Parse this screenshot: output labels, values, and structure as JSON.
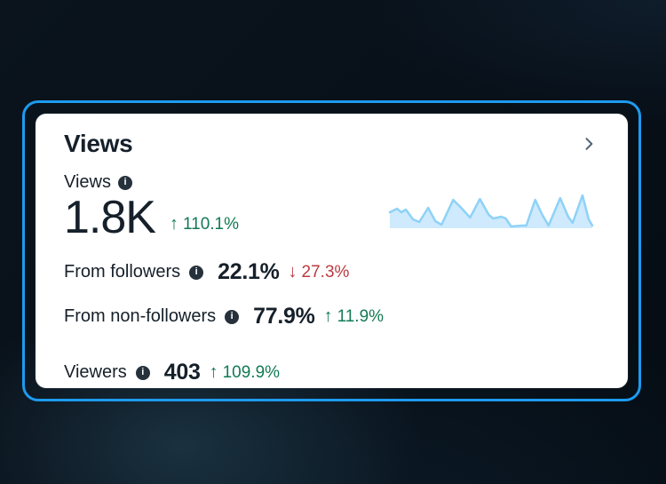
{
  "card": {
    "title": "Views",
    "metric": {
      "label": "Views",
      "value": "1.8K",
      "arrow": "↑",
      "change": "110.1%",
      "direction": "up"
    },
    "breakdown_rows": [
      {
        "label": "From followers",
        "value": "22.1%",
        "arrow": "↓",
        "change": "27.3%",
        "direction": "down"
      },
      {
        "label": "From non-followers",
        "value": "77.9%",
        "arrow": "↑",
        "change": "11.9%",
        "direction": "up"
      }
    ],
    "footer_row": {
      "label": "Viewers",
      "value": "403",
      "arrow": "↑",
      "change": "109.9%",
      "direction": "up"
    }
  },
  "colors": {
    "accent": "#1d9bf0",
    "positive": "#127a54",
    "negative": "#bb3b41",
    "text": "#16202a",
    "muted": "#536471",
    "card_bg": "#ffffff",
    "divider": "#e3e8ec",
    "spark_line": "#8ed2f7",
    "spark_fill": "#cfeafc"
  },
  "chart_data": {
    "type": "area",
    "title": "Views sparkline (relative views over time, unlabeled axes)",
    "grid": false,
    "legend": "none",
    "x_range": [
      0,
      235
    ],
    "y_range": [
      0,
      48
    ],
    "baseline": 48,
    "note": "points are SVG coords (y measured downward from top); relative value = baseline - y",
    "points": [
      [
        2,
        30
      ],
      [
        10,
        26
      ],
      [
        15,
        30
      ],
      [
        20,
        27
      ],
      [
        28,
        38
      ],
      [
        35,
        41
      ],
      [
        45,
        25
      ],
      [
        53,
        40
      ],
      [
        60,
        44
      ],
      [
        73,
        16
      ],
      [
        82,
        25
      ],
      [
        92,
        36
      ],
      [
        103,
        15
      ],
      [
        113,
        33
      ],
      [
        118,
        37
      ],
      [
        127,
        35
      ],
      [
        132,
        37
      ],
      [
        138,
        46
      ],
      [
        150,
        45
      ],
      [
        155,
        45
      ],
      [
        165,
        16
      ],
      [
        173,
        33
      ],
      [
        180,
        45
      ],
      [
        193,
        14
      ],
      [
        202,
        35
      ],
      [
        207,
        42
      ],
      [
        218,
        11
      ],
      [
        225,
        38
      ],
      [
        229,
        45
      ]
    ]
  }
}
